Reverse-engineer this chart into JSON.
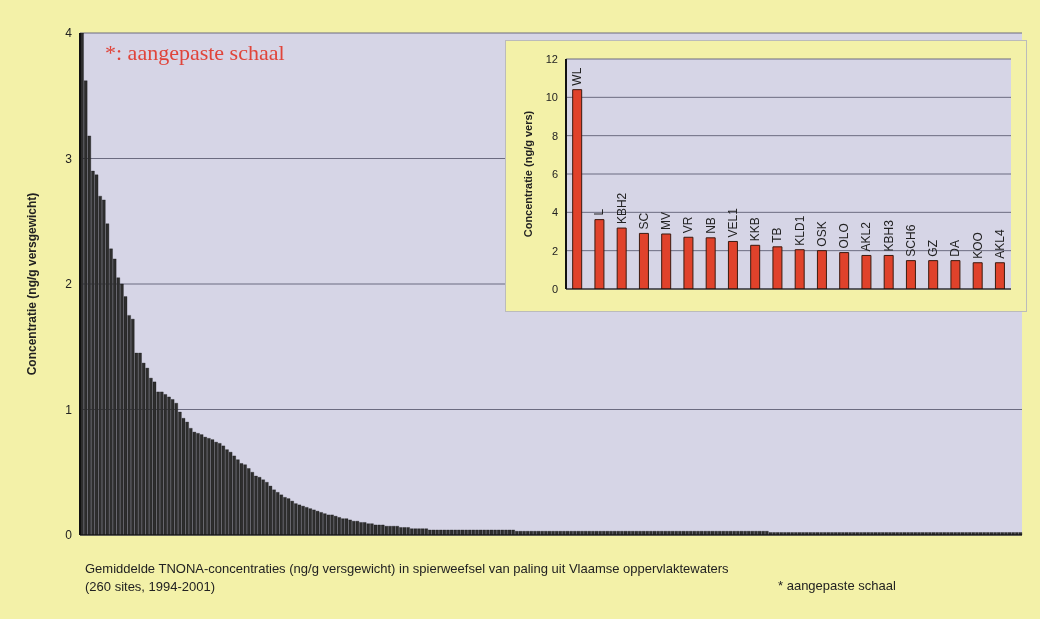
{
  "chart_data": [
    {
      "type": "bar",
      "ylabel": "Concentratie  (ng/g versgewicht)",
      "color": "#2e2e2e",
      "ylim": [
        0,
        4
      ],
      "yticks": [
        0,
        1,
        2,
        3,
        4
      ],
      "grid": "y",
      "annotations": [
        "*: aangepaste schaal",
        "Gemiddelde TNONA-concentraties (ng/g versgewicht) in spierweefsel van paling uit Vlaamse oppervlaktewaters (260 sites, 1994-2001)",
        "* aangepaste schaal"
      ],
      "categories": [
        null,
        null,
        null,
        null,
        null,
        null,
        null,
        null,
        null,
        null,
        null,
        null,
        null,
        null,
        null,
        null,
        null,
        null,
        null,
        null,
        null,
        null,
        null,
        null,
        null,
        null,
        null,
        null,
        null,
        null,
        null,
        null,
        null,
        null,
        null,
        null,
        null,
        null,
        null,
        null,
        null,
        null,
        null,
        null,
        null,
        null,
        null,
        null,
        null,
        null,
        null,
        null,
        null,
        null,
        null,
        null,
        null,
        null,
        null,
        null,
        null,
        null,
        null,
        null,
        null,
        null,
        null,
        null,
        null,
        null,
        null,
        null,
        null,
        null,
        null,
        null,
        null,
        null,
        null,
        null,
        null,
        null,
        null,
        null,
        null,
        null,
        null,
        null,
        null,
        null,
        null,
        null,
        null,
        null,
        null,
        null,
        null,
        null,
        null,
        null,
        null,
        null,
        null,
        null,
        null,
        null,
        null,
        null,
        null,
        null,
        null,
        null,
        null,
        null,
        null,
        null,
        null,
        null,
        null,
        null,
        null,
        null,
        null,
        null,
        null,
        null,
        null,
        null,
        null,
        null,
        null,
        null,
        null,
        null,
        null,
        null,
        null,
        null,
        null,
        null,
        null,
        null,
        null,
        null,
        null,
        null,
        null,
        null,
        null,
        null,
        null,
        null,
        null,
        null,
        null,
        null,
        null,
        null,
        null,
        null,
        null,
        null,
        null,
        null,
        null,
        null,
        null,
        null,
        null,
        null,
        null,
        null,
        null,
        null,
        null,
        null,
        null,
        null,
        null,
        null,
        null,
        null,
        null,
        null,
        null,
        null,
        null,
        null,
        null,
        null,
        null,
        null,
        null,
        null,
        null,
        null,
        null,
        null,
        null,
        null,
        null,
        null,
        null,
        null,
        null,
        null,
        null,
        null,
        null,
        null,
        null,
        null,
        null,
        null,
        null,
        null,
        null,
        null,
        null,
        null,
        null,
        null,
        null,
        null,
        null,
        null,
        null,
        null,
        null,
        null,
        null,
        null,
        null,
        null,
        null,
        null,
        null,
        null,
        null,
        null,
        null,
        null,
        null,
        null,
        null,
        null,
        null,
        null,
        null,
        null,
        null,
        null,
        null,
        null,
        null,
        null,
        null,
        null,
        null,
        null
      ],
      "values": [
        4,
        3.62,
        3.18,
        2.9,
        2.87,
        2.7,
        2.67,
        2.48,
        2.28,
        2.2,
        2.05,
        2.0,
        1.9,
        1.75,
        1.72,
        1.45,
        1.45,
        1.37,
        1.33,
        1.25,
        1.22,
        1.14,
        1.14,
        1.12,
        1.1,
        1.08,
        1.05,
        0.98,
        0.93,
        0.9,
        0.85,
        0.82,
        0.81,
        0.8,
        0.78,
        0.77,
        0.76,
        0.74,
        0.73,
        0.71,
        0.68,
        0.66,
        0.63,
        0.6,
        0.57,
        0.56,
        0.53,
        0.5,
        0.47,
        0.46,
        0.44,
        0.42,
        0.39,
        0.36,
        0.34,
        0.32,
        0.3,
        0.29,
        0.27,
        0.25,
        0.24,
        0.23,
        0.22,
        0.21,
        0.2,
        0.19,
        0.18,
        0.17,
        0.16,
        0.16,
        0.15,
        0.14,
        0.13,
        0.13,
        0.12,
        0.11,
        0.11,
        0.1,
        0.1,
        0.09,
        0.09,
        0.08,
        0.08,
        0.08,
        0.07,
        0.07,
        0.07,
        0.07,
        0.06,
        0.06,
        0.06,
        0.05,
        0.05,
        0.05,
        0.05,
        0.05,
        0.04,
        0.04,
        0.04,
        0.04,
        0.04,
        0.04,
        0.04,
        0.04,
        0.04,
        0.04,
        0.04,
        0.04,
        0.04,
        0.04,
        0.04,
        0.04,
        0.04,
        0.04,
        0.04,
        0.04,
        0.04,
        0.04,
        0.04,
        0.04,
        0.03,
        0.03,
        0.03,
        0.03,
        0.03,
        0.03,
        0.03,
        0.03,
        0.03,
        0.03,
        0.03,
        0.03,
        0.03,
        0.03,
        0.03,
        0.03,
        0.03,
        0.03,
        0.03,
        0.03,
        0.03,
        0.03,
        0.03,
        0.03,
        0.03,
        0.03,
        0.03,
        0.03,
        0.03,
        0.03,
        0.03,
        0.03,
        0.03,
        0.03,
        0.03,
        0.03,
        0.03,
        0.03,
        0.03,
        0.03,
        0.03,
        0.03,
        0.03,
        0.03,
        0.03,
        0.03,
        0.03,
        0.03,
        0.03,
        0.03,
        0.03,
        0.03,
        0.03,
        0.03,
        0.03,
        0.03,
        0.03,
        0.03,
        0.03,
        0.03,
        0.03,
        0.03,
        0.03,
        0.03,
        0.03,
        0.03,
        0.03,
        0.03,
        0.03,
        0.03,
        0.02,
        0.02,
        0.02,
        0.02,
        0.02,
        0.02,
        0.02,
        0.02,
        0.02,
        0.02,
        0.02,
        0.02,
        0.02,
        0.02,
        0.02,
        0.02,
        0.02,
        0.02,
        0.02,
        0.02,
        0.02,
        0.02,
        0.02,
        0.02,
        0.02,
        0.02,
        0.02,
        0.02,
        0.02,
        0.02,
        0.02,
        0.02,
        0.02,
        0.02,
        0.02,
        0.02,
        0.02,
        0.02,
        0.02,
        0.02,
        0.02,
        0.02,
        0.02,
        0.02,
        0.02,
        0.02,
        0.02,
        0.02,
        0.02,
        0.02,
        0.02,
        0.02,
        0.02,
        0.02,
        0.02,
        0.02,
        0.02,
        0.02,
        0.02,
        0.02,
        0.02,
        0.02,
        0.02,
        0.02,
        0.02,
        0.02,
        0.02,
        0.02,
        0.02,
        0.02
      ]
    },
    {
      "type": "bar",
      "ylabel": "Concentratie (ng/g vers)",
      "color": "#e0422b",
      "ylim": [
        0,
        12
      ],
      "yticks": [
        0,
        2,
        4,
        6,
        8,
        10,
        12
      ],
      "grid": "y",
      "categories": [
        "WL",
        "L",
        "KBH2",
        "SC",
        "MV",
        "VR",
        "NB",
        "VEL1",
        "KKB",
        "TB",
        "KLD1",
        "OSK",
        "OLO",
        "AKL2",
        "KBH3",
        "SCH6",
        "GZ",
        "DA",
        "KOO",
        "AKL4"
      ],
      "values": [
        10.4,
        3.62,
        3.18,
        2.9,
        2.87,
        2.7,
        2.67,
        2.48,
        2.28,
        2.2,
        2.05,
        2.0,
        1.9,
        1.75,
        1.75,
        1.48,
        1.48,
        1.48,
        1.37,
        1.37
      ]
    }
  ]
}
